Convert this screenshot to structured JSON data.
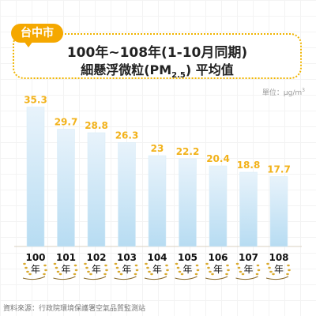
{
  "header": {
    "city": "台中市",
    "title_line1": "100年~108年(1-10月同期)",
    "title_line2_prefix": "細懸浮微粒(PM",
    "title_line2_sub": "2.5",
    "title_line2_suffix": ") 平均值"
  },
  "unit_label": "單位：μg/m",
  "unit_sup": "3",
  "source": "資料來源：行政院環境保護署空氣品質監測站",
  "year_suffix": "年",
  "chart_data": {
    "type": "bar",
    "categories": [
      "100",
      "101",
      "102",
      "103",
      "104",
      "105",
      "106",
      "107",
      "108"
    ],
    "values": [
      35.3,
      29.7,
      28.8,
      26.3,
      23,
      22.2,
      20.4,
      18.8,
      17.7
    ],
    "value_labels": [
      "35.3",
      "29.7",
      "28.8",
      "26.3",
      "23",
      "22.2",
      "20.4",
      "18.8",
      "17.7"
    ],
    "title": "細懸浮微粒(PM2.5) 平均值",
    "ylabel": "",
    "ylim": [
      0,
      40
    ],
    "grid": false,
    "colors": {
      "bar_top": "#e8f3fb",
      "bar_bottom": "#b7dcf2",
      "label": "#f2b21a",
      "ground": "#d9d0c0",
      "wheat": "#d9a92e"
    }
  }
}
